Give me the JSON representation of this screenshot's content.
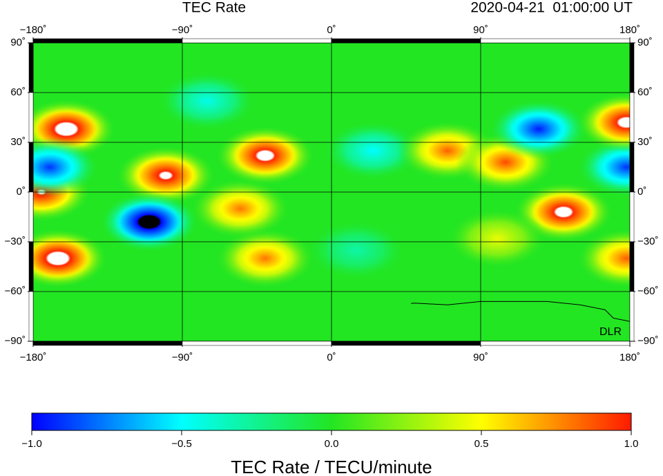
{
  "header": {
    "title": "TEC Rate",
    "timestamp": "2020-04-21  01:00:00 UT"
  },
  "chart_data": {
    "type": "map",
    "xlim": [
      -180,
      180
    ],
    "ylim": [
      -90,
      90
    ],
    "xticks": [
      {
        "value": -180,
        "label": "−180˚"
      },
      {
        "value": -90,
        "label": "−90˚"
      },
      {
        "value": 0,
        "label": "0˚"
      },
      {
        "value": 90,
        "label": "90˚"
      },
      {
        "value": 180,
        "label": "180˚"
      }
    ],
    "yticks": [
      {
        "value": 90,
        "label": "90˚"
      },
      {
        "value": 60,
        "label": "60˚"
      },
      {
        "value": 30,
        "label": "30˚"
      },
      {
        "value": 0,
        "label": "0˚"
      },
      {
        "value": -30,
        "label": "−30˚"
      },
      {
        "value": -60,
        "label": "−60˚"
      },
      {
        "value": -90,
        "label": "−90˚"
      }
    ],
    "grid": true,
    "watermark": "DLR",
    "colorscale": [
      [
        -1,
        "#0000ff"
      ],
      [
        -0.5,
        "#00ffff"
      ],
      [
        0,
        "#22e622"
      ],
      [
        0.5,
        "#ffff00"
      ],
      [
        1,
        "#ff1a00"
      ]
    ],
    "over_color": "#ffffff",
    "under_color": "#000000",
    "colorbar": {
      "lim": [
        -1,
        1
      ],
      "label": "TEC Rate / TECU/minute",
      "ticks": [
        {
          "value": -1,
          "label": "−1.0"
        },
        {
          "value": -0.5,
          "label": "−0.5"
        },
        {
          "value": 0,
          "label": "0.0"
        },
        {
          "value": 0.5,
          "label": "0.5"
        },
        {
          "value": 1,
          "label": "1.0"
        }
      ]
    },
    "features": [
      {
        "lon": -160,
        "lat": 38,
        "value": 1.3
      },
      {
        "lon": -165,
        "lat": -40,
        "value": 1.3
      },
      {
        "lon": -175,
        "lat": 0,
        "value": 1.1
      },
      {
        "lon": -40,
        "lat": -40,
        "value": 0.8
      },
      {
        "lon": -55,
        "lat": -10,
        "value": 0.8
      },
      {
        "lon": -100,
        "lat": 10,
        "value": 1.15
      },
      {
        "lon": -40,
        "lat": 22,
        "value": 1.2
      },
      {
        "lon": -170,
        "lat": 15,
        "value": -0.9
      },
      {
        "lon": -110,
        "lat": -18,
        "value": -1.3
      },
      {
        "lon": -75,
        "lat": 55,
        "value": -0.45
      },
      {
        "lon": 25,
        "lat": 25,
        "value": -0.5
      },
      {
        "lon": 70,
        "lat": 25,
        "value": 0.85
      },
      {
        "lon": 105,
        "lat": 18,
        "value": 0.9
      },
      {
        "lon": 125,
        "lat": 38,
        "value": -0.95
      },
      {
        "lon": 178,
        "lat": 15,
        "value": -0.9
      },
      {
        "lon": 178,
        "lat": 42,
        "value": 1.2
      },
      {
        "lon": 140,
        "lat": -12,
        "value": 1.2
      },
      {
        "lon": 178,
        "lat": -40,
        "value": 0.85
      },
      {
        "lon": 15,
        "lat": -35,
        "value": -0.3
      },
      {
        "lon": 100,
        "lat": -28,
        "value": 0.45
      }
    ]
  }
}
